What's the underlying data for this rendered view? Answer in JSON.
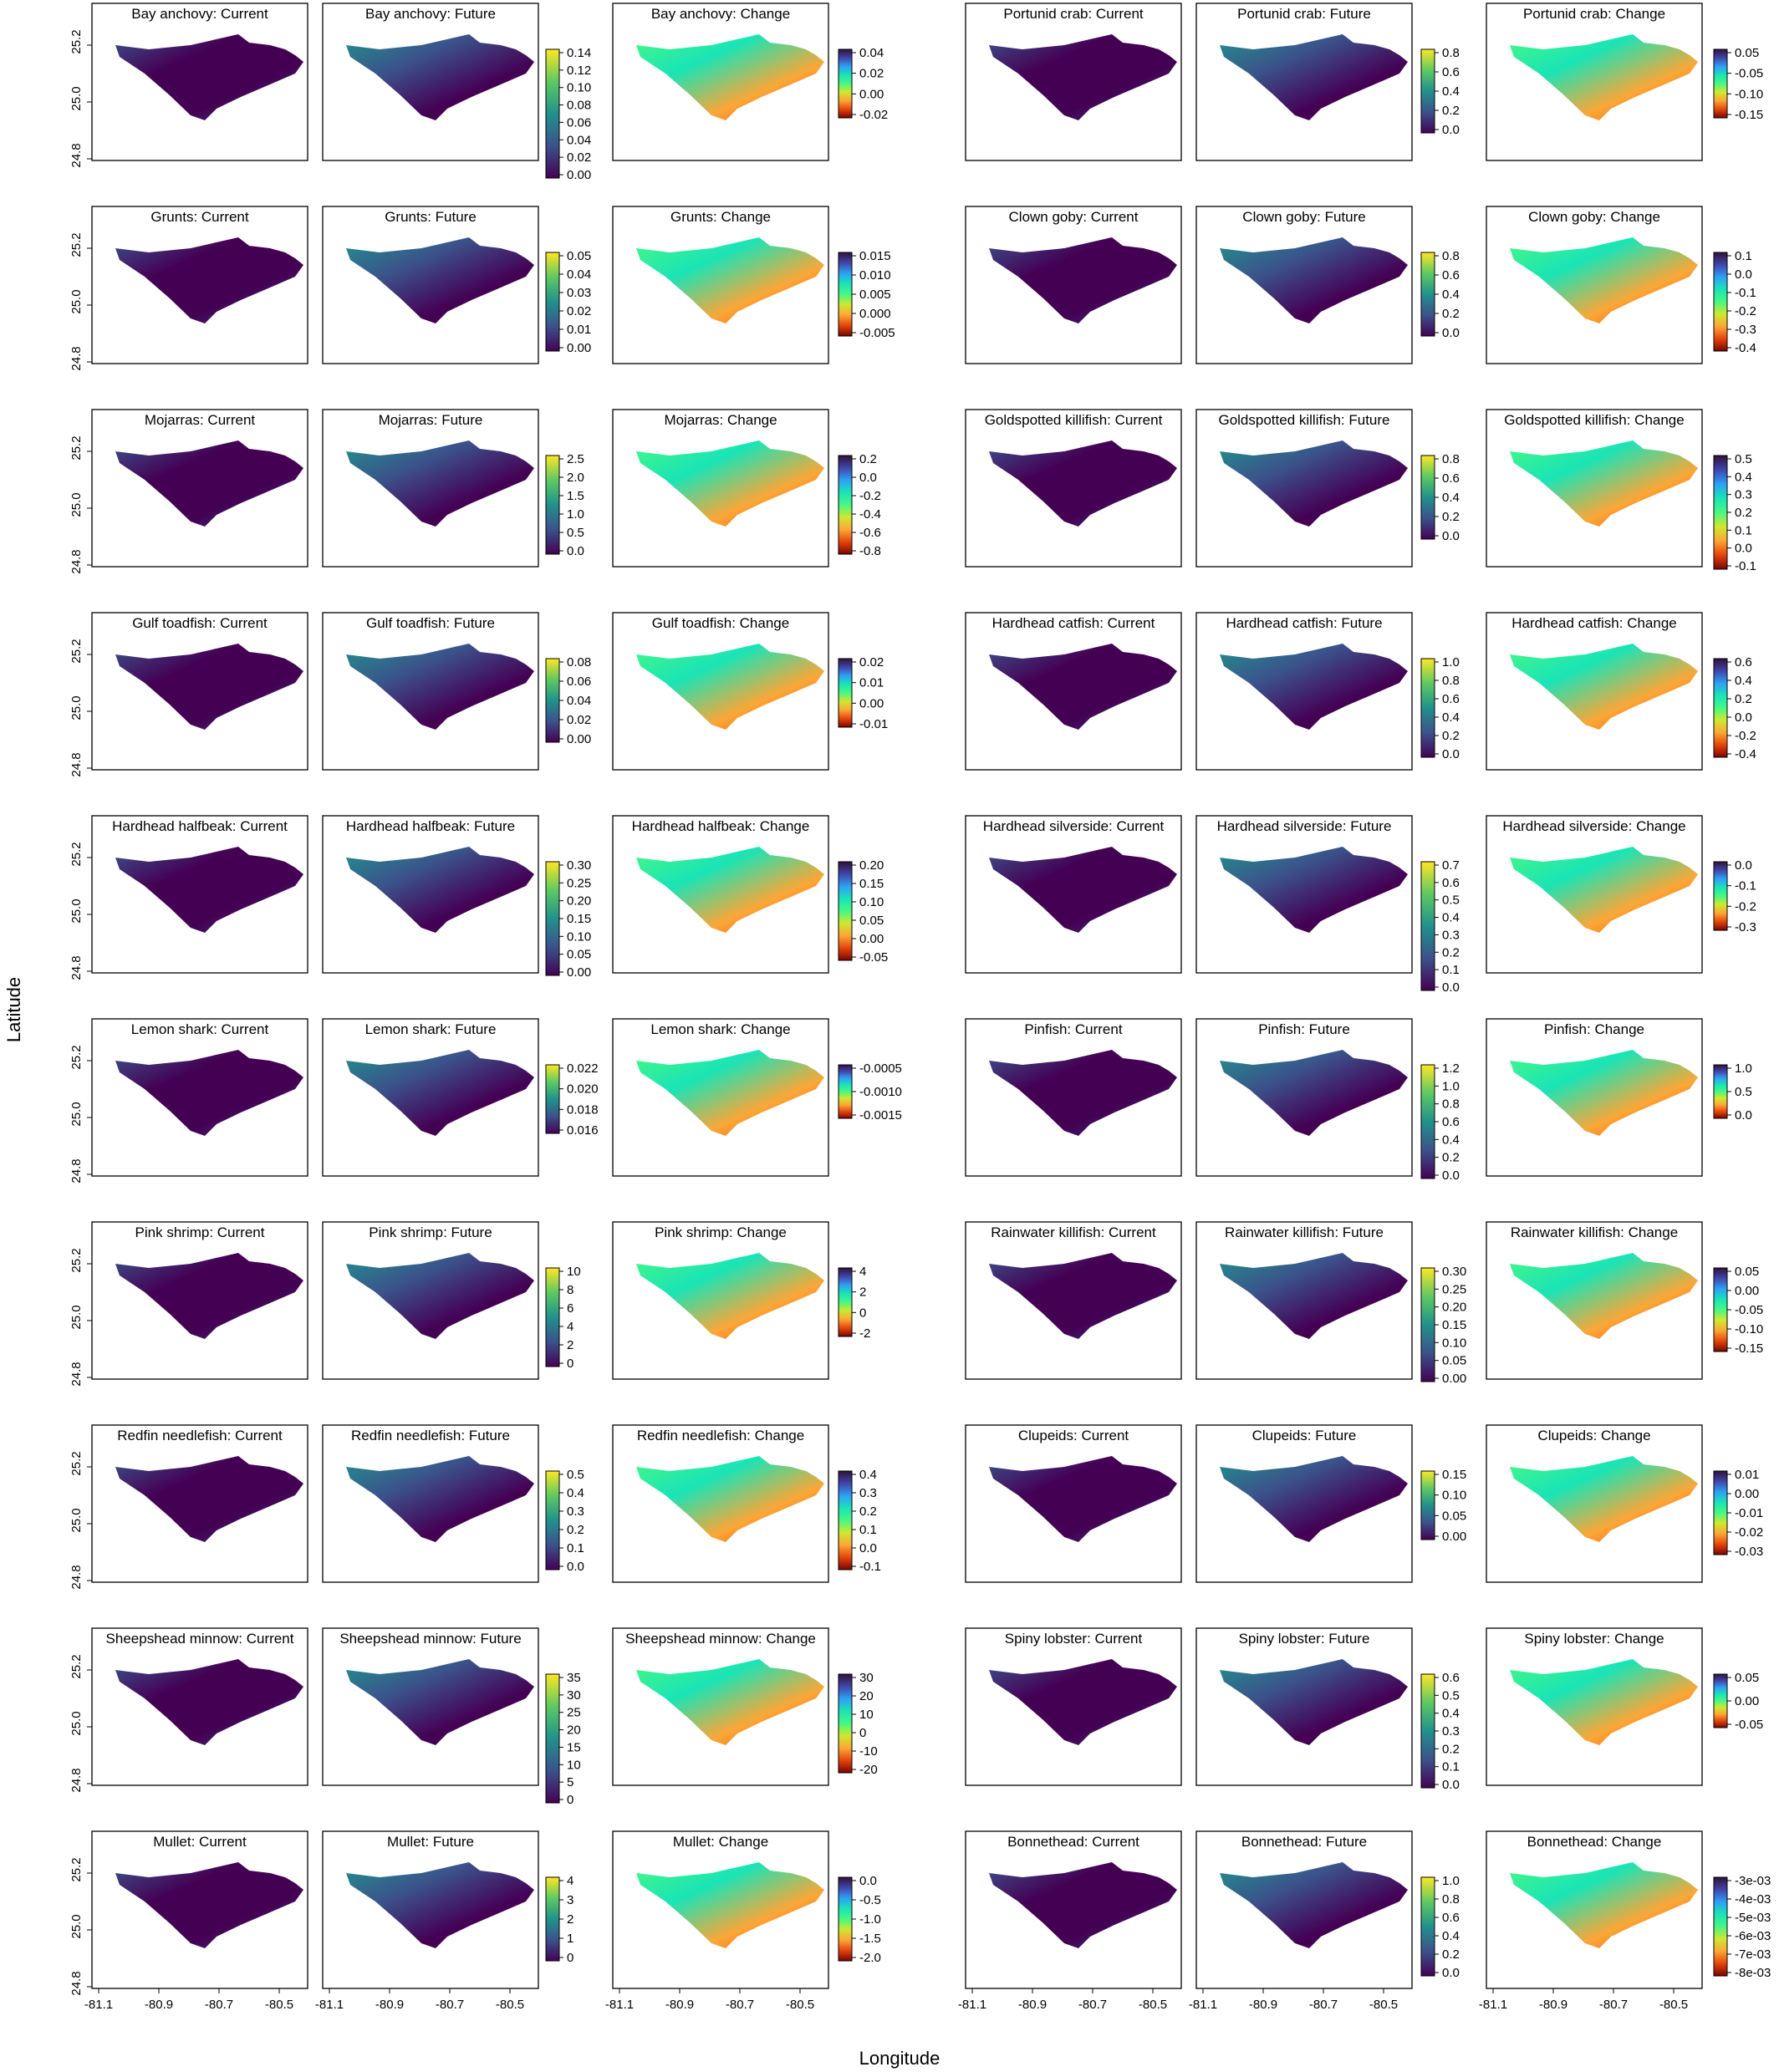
{
  "figure": {
    "xlabel": "Longitude",
    "ylabel": "Latitude",
    "lat_ticks": [
      "25.2",
      "25.0",
      "24.8"
    ],
    "lon_ticks": [
      "-81.1",
      "-80.9",
      "-80.7",
      "-80.5"
    ]
  },
  "chart_data": {
    "type": "heatmap",
    "xlabel": "Longitude",
    "ylabel": "Latitude",
    "x_ticks": [
      -81.1,
      -80.9,
      -80.7,
      -80.5
    ],
    "y_ticks": [
      24.8,
      25.0,
      25.2
    ],
    "colormaps": {
      "viridis": [
        "#440154",
        "#3b528b",
        "#21918c",
        "#5ec962",
        "#fde725"
      ],
      "turbo_reversed": [
        "#7a0403",
        "#e4460a",
        "#fca636",
        "#cfe82f",
        "#46f884",
        "#1ae4b6",
        "#2ea0f6",
        "#4145ab",
        "#30123b"
      ]
    },
    "species": [
      {
        "name": "Bay anchovy",
        "current_title": "Bay anchovy: Current",
        "future_title": "Bay anchovy: Future",
        "change_title": "Bay anchovy: Change",
        "abundance_ticks": [
          "0.14",
          "0.12",
          "0.10",
          "0.08",
          "0.06",
          "0.04",
          "0.02",
          "0.00"
        ],
        "change_ticks": [
          "0.04",
          "0.02",
          "0.00",
          "-0.02"
        ]
      },
      {
        "name": "Grunts",
        "current_title": "Grunts: Current",
        "future_title": "Grunts: Future",
        "change_title": "Grunts: Change",
        "abundance_ticks": [
          "0.05",
          "0.04",
          "0.03",
          "0.02",
          "0.01",
          "0.00"
        ],
        "change_ticks": [
          "0.015",
          "0.010",
          "0.005",
          "0.000",
          "-0.005"
        ]
      },
      {
        "name": "Mojarras",
        "current_title": "Mojarras: Current",
        "future_title": "Mojarras: Future",
        "change_title": "Mojarras: Change",
        "abundance_ticks": [
          "2.5",
          "2.0",
          "1.5",
          "1.0",
          "0.5",
          "0.0"
        ],
        "change_ticks": [
          "0.2",
          "0.0",
          "-0.2",
          "-0.4",
          "-0.6",
          "-0.8"
        ]
      },
      {
        "name": "Gulf toadfish",
        "current_title": "Gulf toadfish: Current",
        "future_title": "Gulf toadfish: Future",
        "change_title": "Gulf toadfish: Change",
        "abundance_ticks": [
          "0.08",
          "0.06",
          "0.04",
          "0.02",
          "0.00"
        ],
        "change_ticks": [
          "0.02",
          "0.01",
          "0.00",
          "-0.01"
        ]
      },
      {
        "name": "Hardhead halfbeak",
        "current_title": "Hardhead halfbeak: Current",
        "future_title": "Hardhead halfbeak: Future",
        "change_title": "Hardhead halfbeak: Change",
        "abundance_ticks": [
          "0.30",
          "0.25",
          "0.20",
          "0.15",
          "0.10",
          "0.05",
          "0.00"
        ],
        "change_ticks": [
          "0.20",
          "0.15",
          "0.10",
          "0.05",
          "0.00",
          "-0.05"
        ]
      },
      {
        "name": "Lemon shark",
        "current_title": "Lemon shark: Current",
        "future_title": "Lemon shark: Future",
        "change_title": "Lemon shark: Change",
        "abundance_ticks": [
          "0.022",
          "0.020",
          "0.018",
          "0.016"
        ],
        "change_ticks": [
          "-0.0005",
          "-0.0010",
          "-0.0015"
        ]
      },
      {
        "name": "Pink shrimp",
        "current_title": "Pink shrimp: Current",
        "future_title": "Pink shrimp: Future",
        "change_title": "Pink shrimp: Change",
        "abundance_ticks": [
          "10",
          "8",
          "6",
          "4",
          "2",
          "0"
        ],
        "change_ticks": [
          "4",
          "2",
          "0",
          "-2"
        ]
      },
      {
        "name": "Redfin needlefish",
        "current_title": "Redfin needlefish: Current",
        "future_title": "Redfin needlefish: Future",
        "change_title": "Redfin needlefish: Change",
        "abundance_ticks": [
          "0.5",
          "0.4",
          "0.3",
          "0.2",
          "0.1",
          "0.0"
        ],
        "change_ticks": [
          "0.4",
          "0.3",
          "0.2",
          "0.1",
          "0.0",
          "-0.1"
        ]
      },
      {
        "name": "Sheepshead minnow",
        "current_title": "Sheepshead minnow: Current",
        "future_title": "Sheepshead minnow: Future",
        "change_title": "Sheepshead minnow: Change",
        "abundance_ticks": [
          "35",
          "30",
          "25",
          "20",
          "15",
          "10",
          "5",
          "0"
        ],
        "change_ticks": [
          "30",
          "20",
          "10",
          "0",
          "-10",
          "-20"
        ]
      },
      {
        "name": "Mullet",
        "current_title": "Mullet: Current",
        "future_title": "Mullet: Future",
        "change_title": "Mullet: Change",
        "abundance_ticks": [
          "4",
          "3",
          "2",
          "1",
          "0"
        ],
        "change_ticks": [
          "0.0",
          "-0.5",
          "-1.0",
          "-1.5",
          "-2.0"
        ]
      },
      {
        "name": "Portunid crab",
        "current_title": "Portunid crab: Current",
        "future_title": "Portunid crab: Future",
        "change_title": "Portunid crab: Change",
        "abundance_ticks": [
          "0.8",
          "0.6",
          "0.4",
          "0.2",
          "0.0"
        ],
        "change_ticks": [
          "0.05",
          "-0.05",
          "-0.10",
          "-0.15"
        ]
      },
      {
        "name": "Clown goby",
        "current_title": "Clown goby: Current",
        "future_title": "Clown goby: Future",
        "change_title": "Clown goby: Change",
        "abundance_ticks": [
          "0.8",
          "0.6",
          "0.4",
          "0.2",
          "0.0"
        ],
        "change_ticks": [
          "0.1",
          "0.0",
          "-0.1",
          "-0.2",
          "-0.3",
          "-0.4"
        ]
      },
      {
        "name": "Goldspotted killifish",
        "current_title": "Goldspotted killifish: Current",
        "future_title": "Goldspotted killifish: Future",
        "change_title": "Goldspotted killifish: Change",
        "abundance_ticks": [
          "0.8",
          "0.6",
          "0.4",
          "0.2",
          "0.0"
        ],
        "change_ticks": [
          "0.5",
          "0.4",
          "0.3",
          "0.2",
          "0.1",
          "0.0",
          "-0.1"
        ]
      },
      {
        "name": "Hardhead catfish",
        "current_title": "Hardhead catfish: Current",
        "future_title": "Hardhead catfish: Future",
        "change_title": "Hardhead catfish: Change",
        "abundance_ticks": [
          "1.0",
          "0.8",
          "0.6",
          "0.4",
          "0.2",
          "0.0"
        ],
        "change_ticks": [
          "0.6",
          "0.4",
          "0.2",
          "0.0",
          "-0.2",
          "-0.4"
        ]
      },
      {
        "name": "Hardhead silverside",
        "current_title": "Hardhead silverside: Current",
        "future_title": "Hardhead silverside: Future",
        "change_title": "Hardhead silverside: Change",
        "abundance_ticks": [
          "0.7",
          "0.6",
          "0.5",
          "0.4",
          "0.3",
          "0.2",
          "0.1",
          "0.0"
        ],
        "change_ticks": [
          "0.0",
          "-0.1",
          "-0.2",
          "-0.3"
        ]
      },
      {
        "name": "Pinfish",
        "current_title": "Pinfish: Current",
        "future_title": "Pinfish: Future",
        "change_title": "Pinfish: Change",
        "abundance_ticks": [
          "1.2",
          "1.0",
          "0.8",
          "0.6",
          "0.4",
          "0.2",
          "0.0"
        ],
        "change_ticks": [
          "1.0",
          "0.5",
          "0.0"
        ]
      },
      {
        "name": "Rainwater killifish",
        "current_title": "Rainwater killifish: Current",
        "future_title": "Rainwater killifish: Future",
        "change_title": "Rainwater killifish: Change",
        "abundance_ticks": [
          "0.30",
          "0.25",
          "0.20",
          "0.15",
          "0.10",
          "0.05",
          "0.00"
        ],
        "change_ticks": [
          "0.05",
          "0.00",
          "-0.05",
          "-0.10",
          "-0.15"
        ]
      },
      {
        "name": "Clupeids",
        "current_title": "Clupeids: Current",
        "future_title": "Clupeids: Future",
        "change_title": "Clupeids: Change",
        "abundance_ticks": [
          "0.15",
          "0.10",
          "0.05",
          "0.00"
        ],
        "change_ticks": [
          "0.01",
          "0.00",
          "-0.01",
          "-0.02",
          "-0.03"
        ]
      },
      {
        "name": "Spiny lobster",
        "current_title": "Spiny lobster: Current",
        "future_title": "Spiny lobster: Future",
        "change_title": "Spiny lobster: Change",
        "abundance_ticks": [
          "0.6",
          "0.5",
          "0.4",
          "0.3",
          "0.2",
          "0.1",
          "0.0"
        ],
        "change_ticks": [
          "0.05",
          "0.00",
          "-0.05"
        ]
      },
      {
        "name": "Bonnethead",
        "current_title": "Bonnethead: Current",
        "future_title": "Bonnethead: Future",
        "change_title": "Bonnethead: Change",
        "abundance_ticks": [
          "1.0",
          "0.8",
          "0.6",
          "0.4",
          "0.2",
          "0.0"
        ],
        "change_ticks": [
          "-3e-03",
          "-4e-03",
          "-5e-03",
          "-6e-03",
          "-7e-03",
          "-8e-03"
        ]
      }
    ]
  }
}
